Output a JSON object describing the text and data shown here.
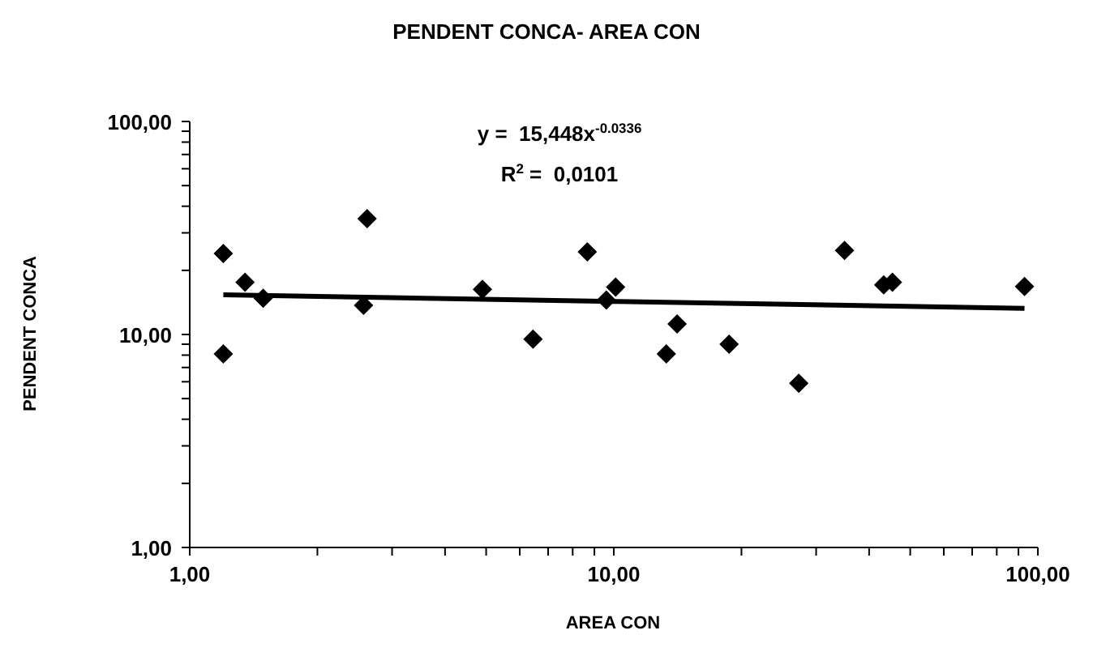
{
  "chart_data": {
    "type": "scatter",
    "title": "PENDENT  CONCA- AREA  CON",
    "xlabel": "AREA  CON",
    "ylabel": "PENDENT CONCA",
    "annotations": [
      "y =  15,448x$^{-0.0336}$",
      "R$^{2}$ =  0,0101"
    ],
    "log": "xy",
    "xlim": [
      1,
      100
    ],
    "ylim": [
      1,
      100
    ],
    "xticks": [
      {
        "value": 1,
        "label": "1,00"
      },
      {
        "value": 2,
        "label": null
      },
      {
        "value": 3,
        "label": null
      },
      {
        "value": 4,
        "label": null
      },
      {
        "value": 5,
        "label": null
      },
      {
        "value": 6,
        "label": null
      },
      {
        "value": 7,
        "label": null
      },
      {
        "value": 8,
        "label": null
      },
      {
        "value": 9,
        "label": null
      },
      {
        "value": 10,
        "label": "10,00"
      },
      {
        "value": 20,
        "label": null
      },
      {
        "value": 30,
        "label": null
      },
      {
        "value": 40,
        "label": null
      },
      {
        "value": 50,
        "label": null
      },
      {
        "value": 60,
        "label": null
      },
      {
        "value": 70,
        "label": null
      },
      {
        "value": 80,
        "label": null
      },
      {
        "value": 90,
        "label": null
      },
      {
        "value": 100,
        "label": "100,00"
      }
    ],
    "yticks": [
      {
        "value": 1,
        "label": "1,00"
      },
      {
        "value": 2,
        "label": null
      },
      {
        "value": 3,
        "label": null
      },
      {
        "value": 4,
        "label": null
      },
      {
        "value": 5,
        "label": null
      },
      {
        "value": 6,
        "label": null
      },
      {
        "value": 7,
        "label": null
      },
      {
        "value": 8,
        "label": null
      },
      {
        "value": 9,
        "label": null
      },
      {
        "value": 10,
        "label": "10,00"
      },
      {
        "value": 20,
        "label": null
      },
      {
        "value": 30,
        "label": null
      },
      {
        "value": 40,
        "label": null
      },
      {
        "value": 50,
        "label": null
      },
      {
        "value": 60,
        "label": null
      },
      {
        "value": 70,
        "label": null
      },
      {
        "value": 80,
        "label": null
      },
      {
        "value": 90,
        "label": null
      },
      {
        "value": 100,
        "label": "100,00"
      }
    ],
    "grid": false,
    "series": [
      {
        "marker": "diamond",
        "color": "#000000",
        "x": [
          1.2,
          1.2,
          1.35,
          1.49,
          2.62,
          2.57,
          4.9,
          6.45,
          8.66,
          9.6,
          10.1,
          13.3,
          14.1,
          18.7,
          27.3,
          35,
          43.3,
          45.4,
          93
        ],
        "values": [
          24,
          8.1,
          17.6,
          14.8,
          35,
          13.7,
          16.3,
          9.5,
          24.4,
          14.5,
          16.7,
          8.1,
          11.2,
          9,
          5.9,
          24.8,
          17.1,
          17.6,
          16.8
        ]
      },
      {
        "type": "line",
        "marker": "none",
        "color": "#000000",
        "x": [
          1.2,
          10,
          93
        ],
        "values": [
          15.35,
          14.3,
          13.27
        ]
      }
    ]
  }
}
